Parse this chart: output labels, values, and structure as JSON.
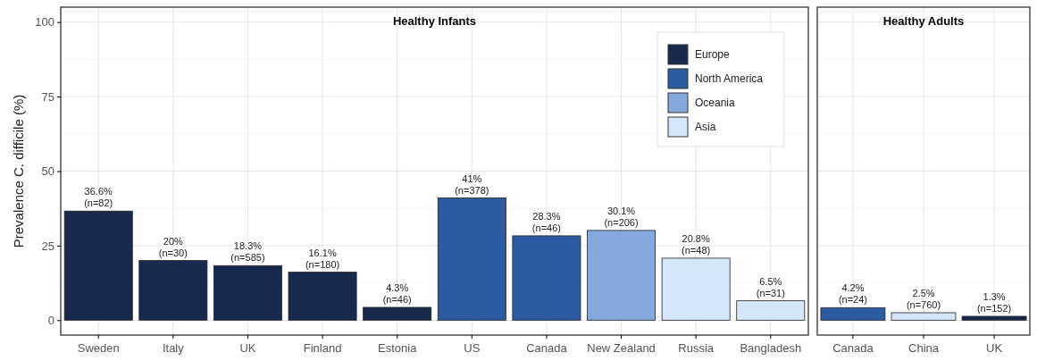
{
  "chart_data": [
    {
      "type": "bar",
      "title": "Healthy Infants",
      "ylabel": "Prevalence C. difficile (%)",
      "categories": [
        "Sweden",
        "Italy",
        "UK",
        "Finland",
        "Estonia",
        "US",
        "Canada",
        "New Zealand",
        "Russia",
        "Bangladesh"
      ],
      "ylim": [
        -5,
        105
      ],
      "yticks": [
        0,
        25,
        50,
        75,
        100
      ],
      "grid": true,
      "legend": "top right",
      "series": [
        {
          "name": "Europe",
          "color": "#172a4d",
          "values": [
            36.6,
            20,
            18.3,
            16.1,
            4.3,
            null,
            null,
            null,
            null,
            null
          ],
          "value_labels": [
            "36.6%\n(n=82)",
            "20%\n(n=30)",
            "18.3%\n(n=585)",
            "16.1%\n(n=180)",
            "4.3%\n(n=46)",
            null,
            null,
            null,
            null,
            null
          ]
        },
        {
          "name": "North America",
          "color": "#2c5ba1",
          "values": [
            null,
            null,
            null,
            null,
            null,
            41,
            28.3,
            null,
            null,
            null
          ],
          "value_labels": [
            null,
            null,
            null,
            null,
            null,
            "41%\n(n=378)",
            "28.3%\n(n=46)",
            null,
            null,
            null
          ]
        },
        {
          "name": "Oceania",
          "color": "#86a9dd",
          "values": [
            null,
            null,
            null,
            null,
            null,
            null,
            null,
            30.1,
            null,
            null
          ],
          "value_labels": [
            null,
            null,
            null,
            null,
            null,
            null,
            null,
            "30.1%\n(n=206)",
            null,
            null
          ]
        },
        {
          "name": "Asia",
          "color": "#d5e5fa",
          "values": [
            null,
            null,
            null,
            null,
            null,
            null,
            null,
            null,
            20.8,
            6.5
          ],
          "value_labels": [
            null,
            null,
            null,
            null,
            null,
            null,
            null,
            null,
            "20.8%\n(n=48)",
            "6.5%\n(n=31)"
          ]
        }
      ]
    },
    {
      "type": "bar",
      "title": "Healthy Adults",
      "categories": [
        "Canada",
        "China",
        "UK"
      ],
      "ylim": [
        -5,
        105
      ],
      "grid": true,
      "tick_labels": "x",
      "series": [
        {
          "color": "#2c5ba1",
          "values": [
            4.2,
            null,
            null
          ],
          "value_labels": [
            "4.2%\n(n=24)",
            null,
            null
          ]
        },
        {
          "color": "#d5e5fa",
          "values": [
            null,
            2.5,
            null
          ],
          "value_labels": [
            null,
            "2.5%\n(n=760)",
            null
          ]
        },
        {
          "color": "#172a4d",
          "values": [
            null,
            null,
            1.3
          ],
          "value_labels": [
            null,
            null,
            "1.3%\n(n=152)"
          ]
        }
      ]
    }
  ]
}
